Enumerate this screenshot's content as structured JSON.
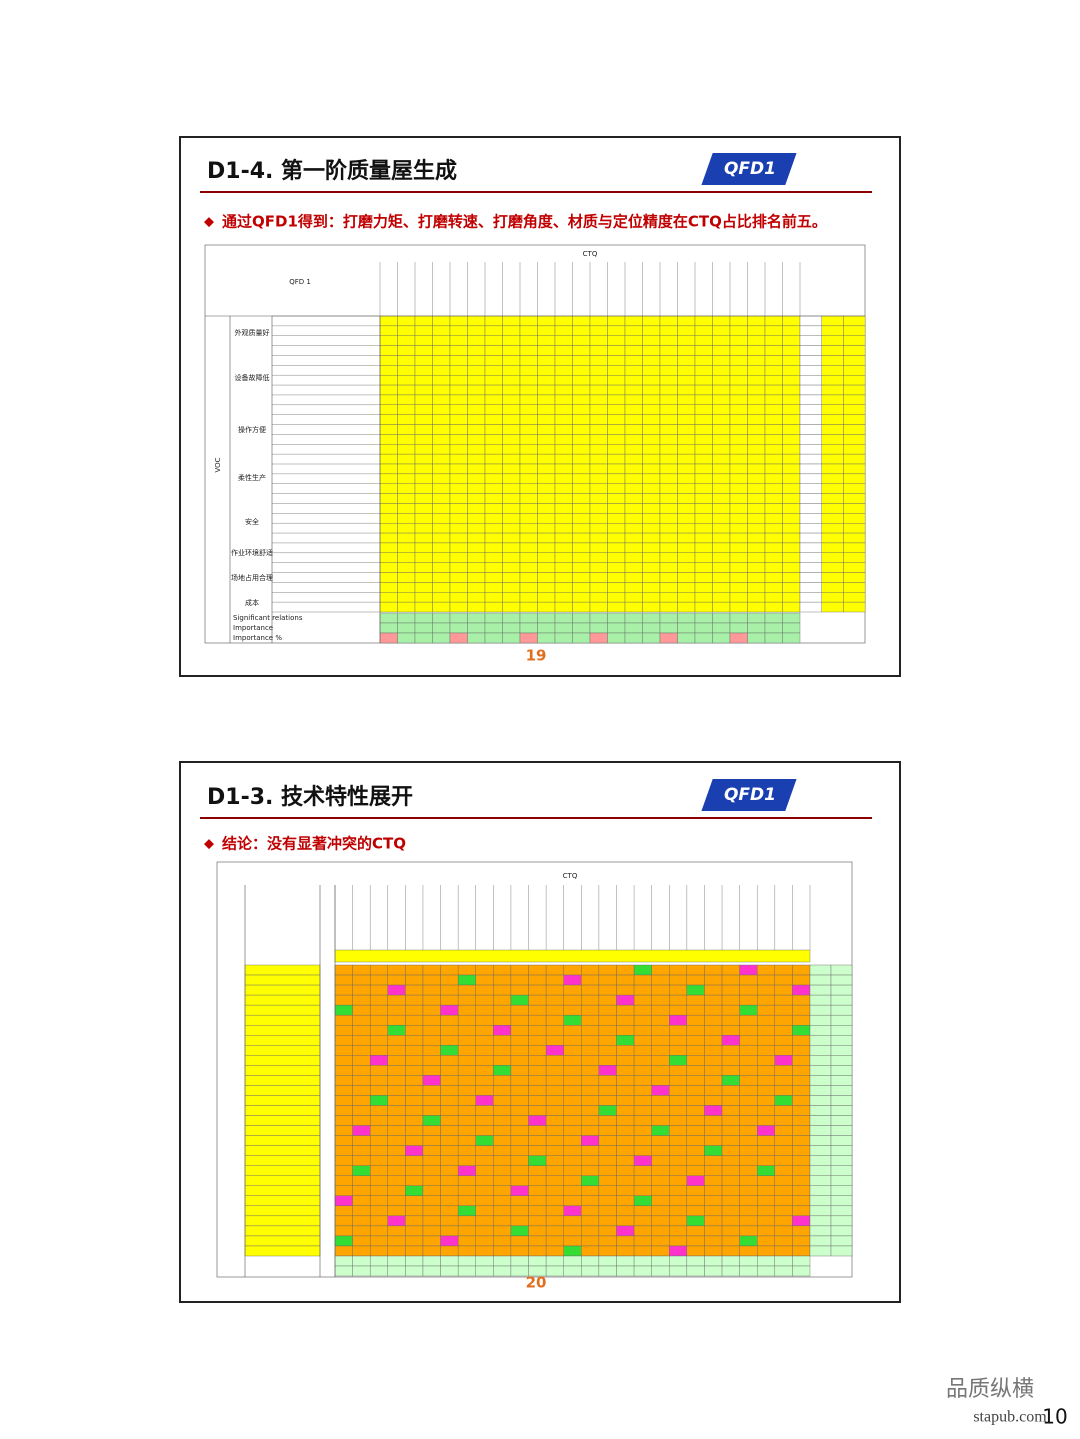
{
  "slides": [
    {
      "title": "D1-4. 第一阶质量屋生成",
      "badge": "QFD1",
      "subtitle": "通过QFD1得到：打磨力矩、打磨转速、打磨角度、材质与定位精度在CTQ占比排名前五。",
      "table": {
        "corner": "QFD 1",
        "ctq_header": "CTQ",
        "voc_label": "VOC",
        "groups": [
          "外观质量好",
          "设备故障低",
          "操作方便",
          "柔性生产",
          "安全",
          "作业环境舒适",
          "场地占用合理",
          "成本"
        ],
        "summary_rows": [
          "Significant relations",
          "Importance",
          "Importance %"
        ]
      },
      "page": "19"
    },
    {
      "title": "D1-3. 技术特性展开",
      "badge": "QFD1",
      "subtitle": "结论：没有显著冲突的CTQ",
      "table": {
        "ctq_header": "CTQ"
      },
      "page": "20"
    }
  ],
  "watermark": "品质纵横",
  "site": "stapub.com",
  "page_number": "10"
}
